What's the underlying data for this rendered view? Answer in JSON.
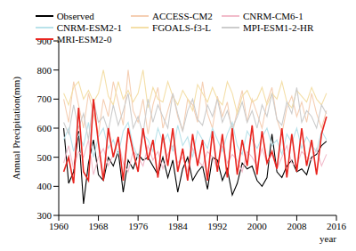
{
  "chart_data": {
    "type": "line",
    "x_label": "year",
    "y_label": "Annual Precipitation(mm)",
    "x": [
      1961,
      1962,
      1963,
      1964,
      1965,
      1966,
      1967,
      1968,
      1969,
      1970,
      1971,
      1972,
      1973,
      1974,
      1975,
      1976,
      1977,
      1978,
      1979,
      1980,
      1981,
      1982,
      1983,
      1984,
      1985,
      1986,
      1987,
      1988,
      1989,
      1990,
      1991,
      1992,
      1993,
      1994,
      1995,
      1996,
      1997,
      1998,
      1999,
      2000,
      2001,
      2002,
      2003,
      2004,
      2005,
      2006,
      2007,
      2008,
      2009,
      2010,
      2011,
      2012,
      2013,
      2014
    ],
    "xlim": [
      1960,
      2016
    ],
    "xticks": [
      1960,
      1968,
      1976,
      1984,
      1992,
      2000,
      2008,
      2016
    ],
    "ylim": [
      300,
      900
    ],
    "yticks": [
      300,
      400,
      500,
      600,
      700,
      800,
      900
    ],
    "grid": false,
    "legend": "top",
    "series": [
      {
        "name": "Observed",
        "color": "#000000",
        "values": [
          600,
          410,
          450,
          590,
          340,
          480,
          560,
          440,
          420,
          500,
          470,
          520,
          380,
          490,
          460,
          510,
          490,
          500,
          470,
          440,
          500,
          430,
          490,
          380,
          460,
          500,
          420,
          450,
          470,
          390,
          500,
          490,
          420,
          460,
          370,
          410,
          480,
          460,
          470,
          420,
          400,
          430,
          580,
          450,
          430,
          470,
          490,
          450,
          460,
          440,
          500,
          510,
          540,
          555
        ]
      },
      {
        "name": "ACCESS-CM2",
        "color": "#f5cfb4",
        "values": [
          700,
          620,
          760,
          680,
          600,
          720,
          650,
          580,
          700,
          640,
          760,
          690,
          610,
          800,
          660,
          620,
          700,
          580,
          680,
          740,
          600,
          660,
          720,
          640,
          590,
          700,
          680,
          620,
          760,
          650,
          600,
          710,
          640,
          690,
          580,
          660,
          730,
          620,
          700,
          650,
          600,
          690,
          740,
          630,
          580,
          670,
          710,
          640,
          690,
          620,
          720,
          650,
          600,
          660
        ]
      },
      {
        "name": "CNRM-CM6-1",
        "color": "#f2bccb",
        "values": [
          480,
          540,
          460,
          520,
          500,
          560,
          440,
          500,
          530,
          470,
          510,
          560,
          480,
          450,
          520,
          500,
          470,
          540,
          490,
          520,
          460,
          510,
          540,
          480,
          500,
          450,
          530,
          490,
          470,
          520,
          500,
          460,
          540,
          480,
          510,
          490,
          450,
          520,
          500,
          470,
          530,
          480,
          510,
          460,
          500,
          540,
          480,
          470,
          520,
          500,
          490,
          530,
          470,
          510
        ]
      },
      {
        "name": "CNRM-ESM2-1",
        "color": "#b9e2ea",
        "values": [
          560,
          600,
          520,
          580,
          540,
          620,
          500,
          570,
          600,
          530,
          560,
          510,
          590,
          620,
          540,
          500,
          580,
          560,
          520,
          600,
          550,
          580,
          520,
          610,
          540,
          570,
          500,
          590,
          560,
          530,
          600,
          560,
          520,
          580,
          620,
          540,
          510,
          590,
          560,
          530,
          570,
          600,
          540,
          560,
          510,
          580,
          550,
          600,
          530,
          570,
          540,
          520,
          590,
          560
        ]
      },
      {
        "name": "FGOALS-f3-L",
        "color": "#f4dfa8",
        "values": [
          720,
          680,
          740,
          760,
          700,
          730,
          690,
          720,
          800,
          710,
          680,
          760,
          700,
          730,
          690,
          720,
          800,
          670,
          740,
          700,
          690,
          760,
          710,
          680,
          730,
          700,
          660,
          750,
          720,
          690,
          740,
          700,
          680,
          760,
          720,
          650,
          710,
          730,
          690,
          700,
          740,
          680,
          720,
          700,
          760,
          690,
          670,
          730,
          710,
          690,
          740,
          700,
          680,
          720
        ]
      },
      {
        "name": "MPI-ESM1-2-HR",
        "color": "#cccccc",
        "values": [
          620,
          580,
          680,
          600,
          650,
          560,
          700,
          620,
          640,
          590,
          680,
          610,
          660,
          720,
          600,
          640,
          580,
          700,
          620,
          680,
          640,
          600,
          720,
          650,
          590,
          660,
          700,
          630,
          610,
          680,
          640,
          700,
          620,
          660,
          600,
          640,
          690,
          620,
          660,
          600,
          680,
          640,
          720,
          630,
          610,
          690,
          650,
          740,
          620,
          660,
          640,
          600,
          680,
          650
        ]
      },
      {
        "name": "MRI-ESM2-0",
        "color": "#e8251f",
        "values": [
          450,
          500,
          410,
          670,
          450,
          420,
          700,
          550,
          420,
          600,
          500,
          570,
          420,
          600,
          520,
          450,
          600,
          490,
          560,
          430,
          580,
          470,
          600,
          450,
          530,
          420,
          580,
          470,
          560,
          420,
          590,
          450,
          580,
          430,
          600,
          440,
          560,
          470,
          610,
          440,
          590,
          480,
          520,
          460,
          600,
          430,
          580,
          450,
          600,
          470,
          560,
          440,
          580,
          640
        ]
      }
    ]
  }
}
